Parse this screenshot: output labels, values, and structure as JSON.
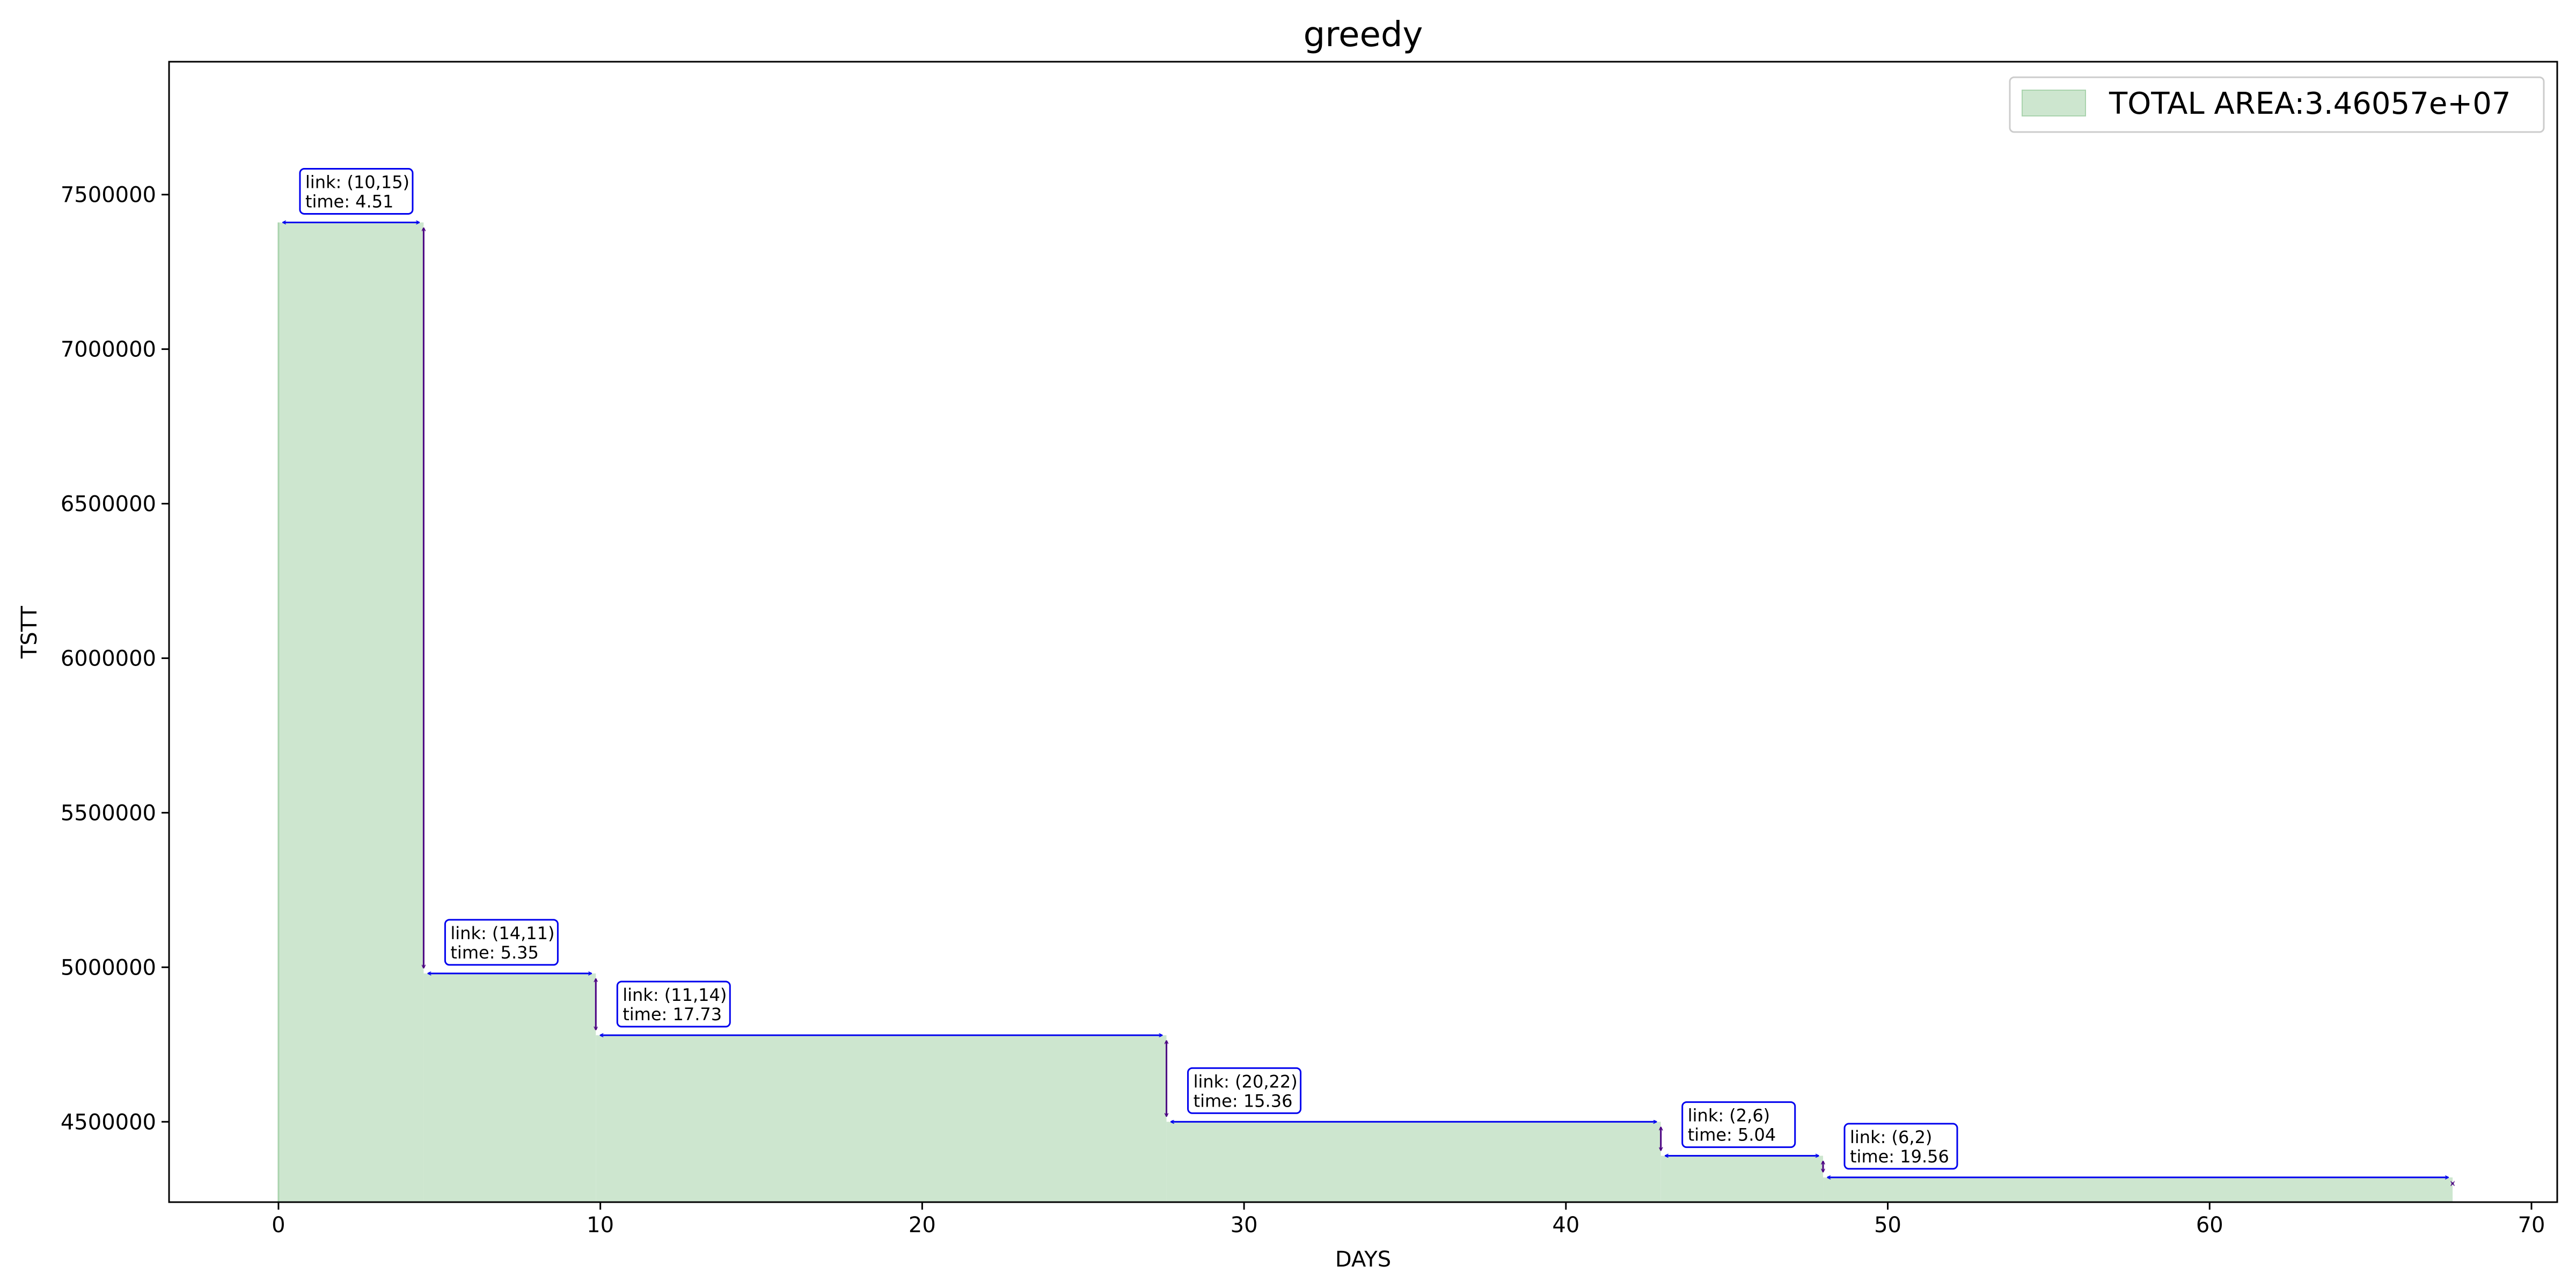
{
  "chart_data": {
    "type": "area",
    "title": "greedy",
    "xlabel": "DAYS",
    "ylabel": "TSTT",
    "xlim": [
      -3.4,
      70.8
    ],
    "ylim": [
      4240000,
      7930000
    ],
    "xticks": [
      0,
      10,
      20,
      30,
      40,
      50,
      60,
      70
    ],
    "yticks": [
      4500000,
      5000000,
      5500000,
      6000000,
      6500000,
      7000000,
      7500000
    ],
    "grid": false,
    "legend": {
      "position": "top-right",
      "label": "TOTAL AREA:3.46057e+07"
    },
    "colors": {
      "fill": "#cde6cf",
      "fill_edge": "#a9d3ad",
      "h_arrow": "#0000ee",
      "v_arrow": "#4b0082",
      "box_edge": "#0000ee"
    },
    "steps": [
      {
        "x0": 0.0,
        "x1": 4.51,
        "y": 7410000
      },
      {
        "x0": 4.51,
        "x1": 9.86,
        "y": 4980000
      },
      {
        "x0": 9.86,
        "x1": 27.59,
        "y": 4780000
      },
      {
        "x0": 27.59,
        "x1": 42.95,
        "y": 4500000
      },
      {
        "x0": 42.95,
        "x1": 47.99,
        "y": 4390000
      },
      {
        "x0": 47.99,
        "x1": 67.55,
        "y": 4320000
      }
    ],
    "final_y": 4280000,
    "annotations": [
      {
        "link": "link: (10,15)",
        "time": "time: 4.51"
      },
      {
        "link": "link: (14,11)",
        "time": "time: 5.35"
      },
      {
        "link": "link: (11,14)",
        "time": "time: 17.73"
      },
      {
        "link": "link: (20,22)",
        "time": "time: 15.36"
      },
      {
        "link": "link: (2,6)",
        "time": "time: 5.04"
      },
      {
        "link": "link: (6,2)",
        "time": "time: 19.56"
      }
    ]
  }
}
